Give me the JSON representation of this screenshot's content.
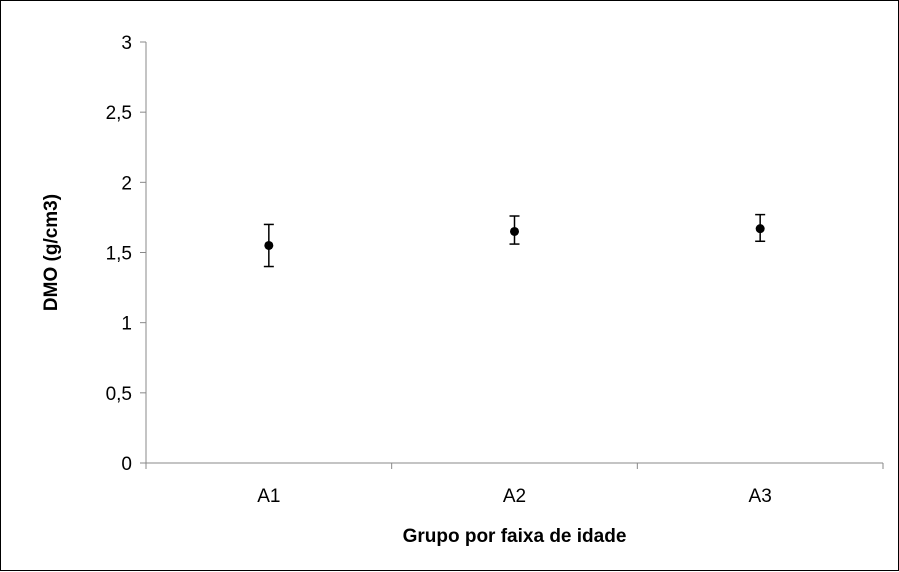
{
  "chart_data": {
    "type": "scatter",
    "title": "",
    "xlabel": "Grupo por faixa de idade",
    "ylabel": "DMO (g/cm3)",
    "categories": [
      "A1",
      "A2",
      "A3"
    ],
    "series": [
      {
        "values": [
          1.55,
          1.65,
          1.67
        ],
        "error_low": [
          1.4,
          1.56,
          1.58
        ],
        "error_high": [
          1.7,
          1.76,
          1.77
        ]
      }
    ],
    "ylim": [
      0,
      3
    ],
    "y_ticks": [
      0,
      0.5,
      1,
      1.5,
      2,
      2.5,
      3
    ],
    "y_tick_labels": [
      "0",
      "0,5",
      "1",
      "1,5",
      "2",
      "2,5",
      "3"
    ],
    "grid": false,
    "legend": "none",
    "marker_color": "#000000"
  }
}
